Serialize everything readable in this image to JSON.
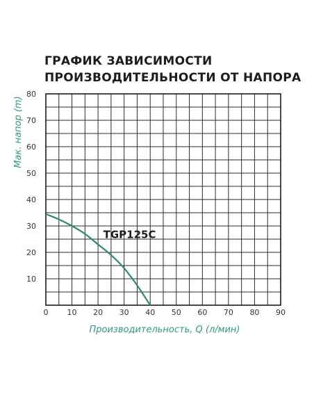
{
  "chart_data": {
    "type": "line",
    "title_lines": [
      "ГРАФИК ЗАВИСИМОСТИ",
      "ПРОИЗВОДИТЕЛЬНОСТИ  ОТ НАПОРА"
    ],
    "xlabel": "Производительность, Q (л/мин)",
    "ylabel": "Мак. напор (m)",
    "xlim": [
      0,
      90
    ],
    "ylim": [
      0,
      80
    ],
    "xticks": [
      0,
      10,
      20,
      30,
      40,
      50,
      60,
      70,
      80,
      90
    ],
    "yticks": [
      10,
      20,
      30,
      40,
      50,
      60,
      70,
      80
    ],
    "grid": true,
    "series": [
      {
        "name": "TGP125C",
        "x": [
          0,
          5,
          10,
          15,
          20,
          25,
          30,
          35,
          40
        ],
        "y": [
          34.5,
          32.5,
          30,
          27,
          23,
          19,
          14,
          7.5,
          0
        ]
      }
    ],
    "series_label_position": {
      "x": 22,
      "y": 27
    },
    "colors": {
      "curve": "#2a8a6c",
      "axis_label": "#2e9a80",
      "grid": "#2b2b2b",
      "frame": "#1a1a1a",
      "tick_label": "#333333",
      "title": "#1d1d1d"
    }
  }
}
